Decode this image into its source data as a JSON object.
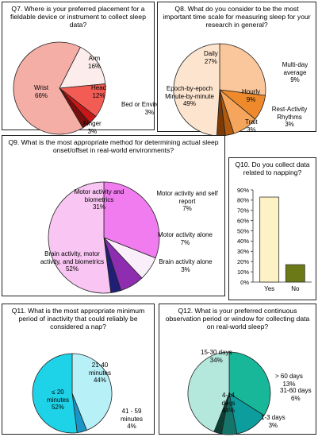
{
  "chart_data": [
    {
      "id": "q7",
      "type": "pie",
      "title": "Q7. Where is your preferred placement for a fieldable device or instrument to collect sleep data?",
      "slices": [
        {
          "name": "Arm",
          "value": 16,
          "label": "16%",
          "color": "#fdecec"
        },
        {
          "name": "Head",
          "value": 12,
          "label": "12%",
          "color": "#f25c54"
        },
        {
          "name": "Bed or Environment",
          "value": 3,
          "label": "3%",
          "color": "#c91717"
        },
        {
          "name": "Finger",
          "value": 3,
          "label": "3%",
          "color": "#7a0d0d"
        },
        {
          "name": "Wrist",
          "value": 66,
          "label": "66%",
          "color": "#f5aea6"
        }
      ]
    },
    {
      "id": "q8",
      "type": "pie",
      "title": "Q8. What do you consider to be the most important time scale for measuring sleep for your research in general?",
      "slices": [
        {
          "name": "Daily",
          "value": 27,
          "label": "27%",
          "color": "#f9c79b"
        },
        {
          "name": "Multi-day average",
          "value": 9,
          "label": "9%",
          "color": "#ee8a2c"
        },
        {
          "name": "Hourly",
          "value": 9,
          "label": "9%",
          "color": "#f6a55c"
        },
        {
          "name": "Rest-Activity Rhythms",
          "value": 3,
          "label": "3%",
          "color": "#b05a10"
        },
        {
          "name": "Trait",
          "value": 3,
          "label": "3%",
          "color": "#7b3a06"
        },
        {
          "name": "Epoch-by-epoch Minute-by-minute",
          "value": 49,
          "label": "49%",
          "color": "#fde4cf"
        }
      ]
    },
    {
      "id": "q9",
      "type": "pie",
      "title": "Q9. What is the most appropriate method for determining actual sleep onset/offset in real-world environments?",
      "slices": [
        {
          "name": "Motor activity and biometrics",
          "value": 31,
          "label": "31%",
          "color": "#f07cf0"
        },
        {
          "name": "Motor activity and self report",
          "value": 7,
          "label": "7%",
          "color": "#fbeefb"
        },
        {
          "name": "Motor activity alone",
          "value": 7,
          "label": "7%",
          "color": "#8e2db0"
        },
        {
          "name": "Brain activity alone",
          "value": 3,
          "label": "3%",
          "color": "#1f1f75"
        },
        {
          "name": "Brain activity, motor activity, and biometrics",
          "value": 52,
          "label": "52%",
          "color": "#f9c6f3"
        }
      ]
    },
    {
      "id": "q10",
      "type": "bar",
      "title": "Q10. Do you collect data related to napping?",
      "categories": [
        "Yes",
        "No"
      ],
      "values": [
        83,
        17
      ],
      "colors": [
        "#fdf2c6",
        "#6b7a16"
      ],
      "ylim": [
        0,
        90
      ],
      "yticks": [
        "0%",
        "10%",
        "20%",
        "30%",
        "40%",
        "50%",
        "60%",
        "70%",
        "80%",
        "90%"
      ]
    },
    {
      "id": "q11",
      "type": "pie",
      "title": "Q11. What is the most appropriate minimum period of inactivity that could reliably be considered a nap?",
      "slices": [
        {
          "name": "21-40 minutes",
          "value": 44,
          "label": "44%",
          "color": "#b7f1f7"
        },
        {
          "name": "41 - 59 minutes",
          "value": 4,
          "label": "4%",
          "color": "#1a95c8"
        },
        {
          "name": "≤ 20 minutes",
          "value": 52,
          "label": "52%",
          "color": "#1ed3e8"
        }
      ]
    },
    {
      "id": "q12",
      "type": "pie",
      "title": "Q12. What is your preferred continuous observation period or window for collecting data on real-world sleep?",
      "slices": [
        {
          "name": "15-30 days",
          "value": 34,
          "label": "34%",
          "color": "#18b79a"
        },
        {
          "name": "> 60 days",
          "value": 13,
          "label": "13%",
          "color": "#0e9d9d"
        },
        {
          "name": "31-60 days",
          "value": 6,
          "label": "6%",
          "color": "#16756a"
        },
        {
          "name": "1-3 days",
          "value": 3,
          "label": "3%",
          "color": "#0b3f33"
        },
        {
          "name": "4-14 days",
          "value": 44,
          "label": "44%",
          "color": "#b4e8dc"
        }
      ]
    }
  ]
}
